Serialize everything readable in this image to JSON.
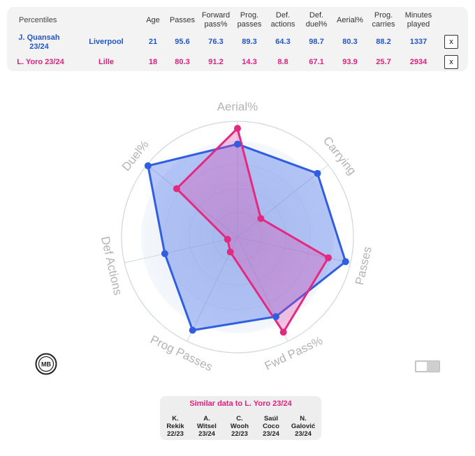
{
  "table": {
    "headers": {
      "percentiles": "Percentiles",
      "age": "Age",
      "passes": "Passes",
      "forward_pass": [
        "Forward",
        "pass%"
      ],
      "prog_passes": [
        "Prog.",
        "passes"
      ],
      "def_actions": [
        "Def.",
        "actions"
      ],
      "def_duel": [
        "Def.",
        "duel%"
      ],
      "aerial": "Aerial%",
      "prog_carries": [
        "Prog.",
        "carries"
      ],
      "minutes_played": [
        "Minutes",
        "played"
      ]
    },
    "rows": [
      {
        "player_lines": [
          "J. Quansah",
          "23/24"
        ],
        "team": "Liverpool",
        "age": "21",
        "passes": "95.6",
        "forward_pass": "76.3",
        "prog_passes": "89.3",
        "def_actions": "64.3",
        "def_duel": "98.7",
        "aerial": "80.3",
        "prog_carries": "88.2",
        "minutes": "1337",
        "remove_label": "x",
        "color": "#2457c5"
      },
      {
        "player_lines": [
          "L. Yoro 23/24"
        ],
        "team": "Lille",
        "age": "18",
        "passes": "80.3",
        "forward_pass": "91.2",
        "prog_passes": "14.3",
        "def_actions": "8.8",
        "def_duel": "67.1",
        "aerial": "93.9",
        "prog_carries": "25.7",
        "minutes": "2934",
        "remove_label": "x",
        "color": "#e0207f"
      }
    ]
  },
  "radar": {
    "axes": [
      "Aerial%",
      "Carrying",
      "Passes",
      "Fwd Pass%",
      "Prog Passes",
      "Def Actions",
      "Duel%"
    ],
    "series": [
      {
        "values": [
          80.3,
          88.2,
          95.6,
          76.3,
          89.3,
          64.3,
          98.7
        ],
        "color": "#2f5ee0",
        "fill": "rgba(70,110,235,0.38)"
      },
      {
        "values": [
          93.9,
          25.7,
          80.3,
          91.2,
          14.3,
          8.8,
          67.1
        ],
        "color": "#e42a80",
        "fill": "rgba(225,70,170,0.32)"
      }
    ],
    "max": 100
  },
  "logo": {
    "text": "MB"
  },
  "similar": {
    "title": "Similar data to L. Yoro 23/24",
    "players": [
      {
        "lines": [
          "K.",
          "Rekik",
          "22/23"
        ]
      },
      {
        "lines": [
          "A.",
          "Witsel",
          "23/24"
        ]
      },
      {
        "lines": [
          "C.",
          "Wooh",
          "22/23"
        ]
      },
      {
        "lines": [
          "Saúl",
          "Coco",
          "23/24"
        ]
      },
      {
        "lines": [
          "N.",
          "Galović",
          "23/24"
        ]
      }
    ]
  }
}
